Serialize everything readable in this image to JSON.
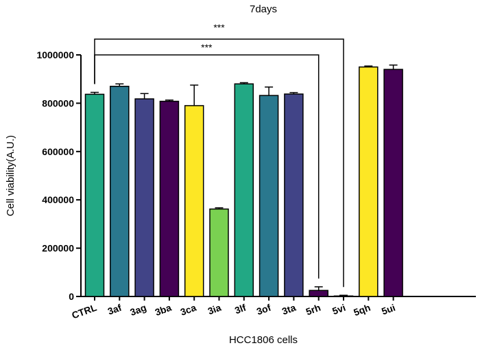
{
  "chart_data": {
    "type": "bar",
    "title": "7days",
    "xlabel": "HCC1806 cells",
    "ylabel": "Cell viability(A.U.)",
    "ylim": [
      0,
      1000000
    ],
    "yticks": [
      0,
      200000,
      400000,
      600000,
      800000,
      1000000
    ],
    "ytick_labels": [
      "0",
      "200000",
      "400000",
      "600000",
      "800000",
      "1000000"
    ],
    "categories": [
      "CTRL",
      "3af",
      "3ag",
      "3ba",
      "3ca",
      "3ia",
      "3lf",
      "3of",
      "3ta",
      "5rh",
      "5vi",
      "5qh",
      "5ui"
    ],
    "values": [
      837000,
      870000,
      818000,
      808000,
      790000,
      362000,
      880000,
      832000,
      838000,
      25000,
      2000,
      950000,
      940000
    ],
    "errors": [
      8000,
      10000,
      22000,
      5000,
      85000,
      5000,
      5000,
      35000,
      6000,
      15000,
      3000,
      4000,
      18000
    ],
    "colors": [
      "#22A884",
      "#2A788E",
      "#414487",
      "#440154",
      "#FDE725",
      "#7AD151",
      "#22A884",
      "#2A788E",
      "#414487",
      "#440154",
      "#440154",
      "#FDE725",
      "#440154"
    ],
    "significance": [
      {
        "from": "CTRL",
        "to": "5vi",
        "label": "***"
      },
      {
        "from": "CTRL",
        "to": "5rh",
        "label": "***"
      }
    ]
  }
}
